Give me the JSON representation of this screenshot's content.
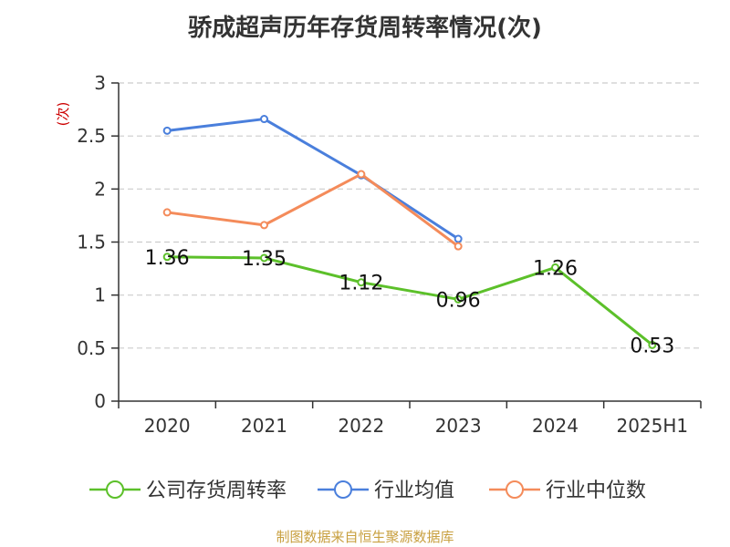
{
  "chart_data": {
    "type": "line",
    "title": "骄成超声历年存货周转率情况(次)",
    "ylabel": "(次)",
    "ylim": [
      0,
      3
    ],
    "yticks": [
      "0",
      "0.5",
      "1",
      "1.5",
      "2",
      "2.5",
      "3"
    ],
    "grid": true,
    "legend_position": "bottom",
    "categories": [
      "2020",
      "2021",
      "2022",
      "2023",
      "2024",
      "2025H1"
    ],
    "series": [
      {
        "name": "公司存货周转率",
        "color": "#5cc02a",
        "values": [
          1.36,
          1.35,
          1.12,
          0.96,
          1.26,
          0.53
        ],
        "labels": [
          "1.36",
          "1.35",
          "1.12",
          "0.96",
          "1.26",
          "0.53"
        ]
      },
      {
        "name": "行业均值",
        "color": "#4a7fdc",
        "values": [
          2.55,
          2.66,
          2.13,
          1.53,
          null,
          null
        ]
      },
      {
        "name": "行业中位数",
        "color": "#f48b5a",
        "values": [
          1.78,
          1.66,
          2.14,
          1.46,
          null,
          null
        ]
      }
    ],
    "source": "制图数据来自恒生聚源数据库"
  }
}
